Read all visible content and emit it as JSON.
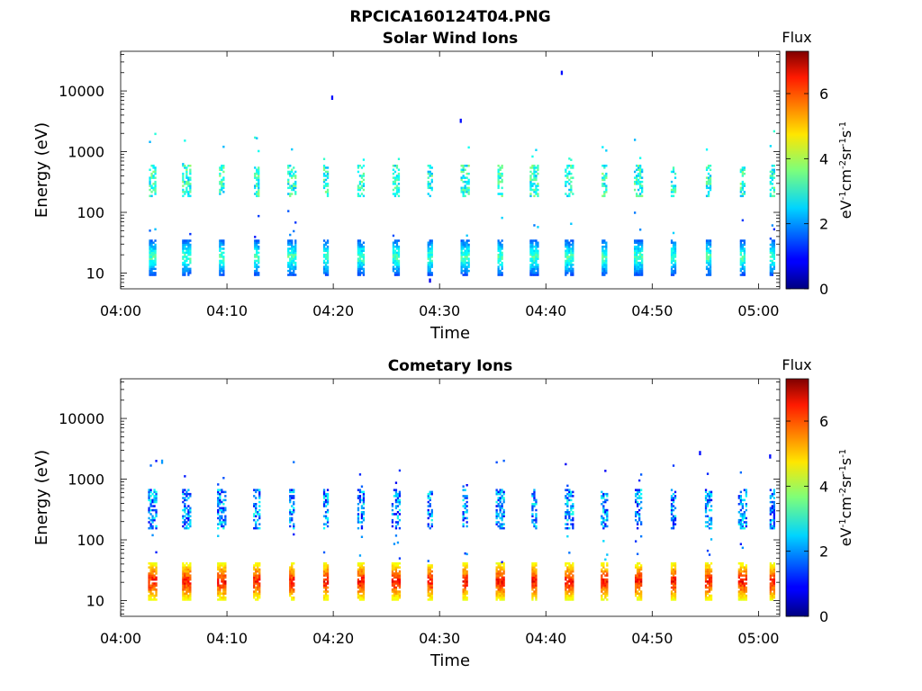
{
  "figure": {
    "filename": "RPCICA160124T04.PNG"
  },
  "chart_data": [
    {
      "type": "heatmap",
      "title": "Solar Wind Ions",
      "xlabel": "Time",
      "ylabel": "Energy (eV)",
      "x_range": [
        "04:00",
        "05:02"
      ],
      "x_ticks": [
        "04:00",
        "04:10",
        "04:20",
        "04:30",
        "04:40",
        "04:50",
        "05:00"
      ],
      "y_scale": "log",
      "y_range": [
        5.5,
        45000
      ],
      "y_ticks": [
        "10",
        "100",
        "1000",
        "10000"
      ],
      "grid": false,
      "colorbar": {
        "title": "Flux",
        "unit_label": "eV-1cm-2sr-1s-1",
        "range": [
          0,
          7.3
        ],
        "ticks": [
          "0",
          "2",
          "4",
          "6"
        ],
        "colormap": "jet"
      },
      "scan_minutes": [
        3.0,
        6.2,
        9.5,
        12.8,
        16.1,
        19.3,
        22.6,
        25.9,
        29.1,
        32.4,
        35.7,
        38.9,
        42.2,
        45.5,
        48.7,
        52.0,
        55.3,
        58.5,
        61.3
      ],
      "bands": {
        "high": {
          "energy_range_eV": [
            180,
            600
          ],
          "flux_range": [
            2.2,
            3.8
          ]
        },
        "low": {
          "energy_range_eV": [
            9,
            35
          ],
          "flux_range": [
            0.5,
            3.8
          ]
        }
      },
      "isolated_points": [
        {
          "time": "04:19.8",
          "energy_eV": 7200,
          "flux": 1.0
        },
        {
          "time": "04:31.9",
          "energy_eV": 3000,
          "flux": 1.0
        },
        {
          "time": "04:41.4",
          "energy_eV": 18500,
          "flux": 1.0
        },
        {
          "time": "04:29.0",
          "energy_eV": 7,
          "flux": 0.8
        }
      ]
    },
    {
      "type": "heatmap",
      "title": "Cometary Ions",
      "xlabel": "Time",
      "ylabel": "Energy (eV)",
      "x_range": [
        "04:00",
        "05:02"
      ],
      "x_ticks": [
        "04:00",
        "04:10",
        "04:20",
        "04:30",
        "04:40",
        "04:50",
        "05:00"
      ],
      "y_scale": "log",
      "y_range": [
        5.5,
        45000
      ],
      "y_ticks": [
        "10",
        "100",
        "1000",
        "10000"
      ],
      "grid": false,
      "colorbar": {
        "title": "Flux",
        "unit_label": "eV-1cm-2sr-1s-1",
        "range": [
          0,
          7.3
        ],
        "ticks": [
          "0",
          "2",
          "4",
          "6"
        ],
        "colormap": "jet"
      },
      "scan_minutes": [
        3.0,
        6.2,
        9.5,
        12.8,
        16.1,
        19.3,
        22.6,
        25.9,
        29.1,
        32.4,
        35.7,
        38.9,
        42.2,
        45.5,
        48.7,
        52.0,
        55.3,
        58.5,
        61.3
      ],
      "bands": {
        "high": {
          "energy_range_eV": [
            150,
            650
          ],
          "flux_range": [
            0.8,
            3.0
          ]
        },
        "low": {
          "energy_range_eV": [
            10,
            40
          ],
          "flux_range": [
            3.5,
            6.8
          ]
        }
      },
      "isolated_points": [
        {
          "time": "04:03.8",
          "energy_eV": 1800,
          "flux": 2.0
        },
        {
          "time": "04:54.4",
          "energy_eV": 2500,
          "flux": 1.0
        },
        {
          "time": "05:01.0",
          "energy_eV": 2200,
          "flux": 1.0
        }
      ]
    }
  ]
}
